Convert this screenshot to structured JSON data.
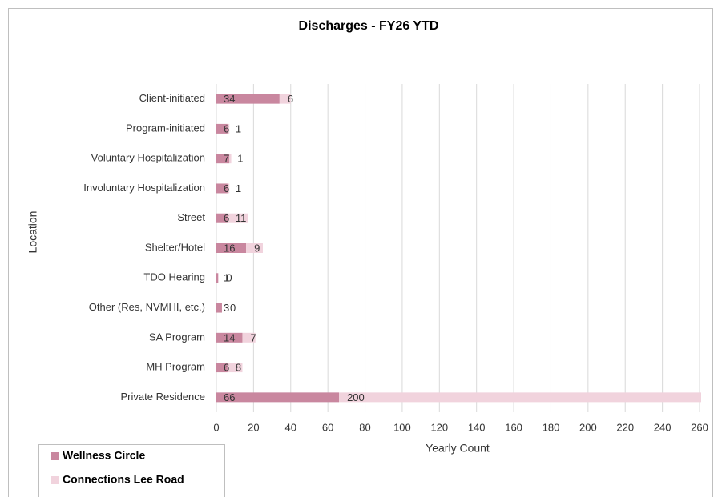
{
  "chart_data": {
    "type": "stacked-bar-horizontal",
    "title": "Discharges - FY26 YTD",
    "x_label": "Yearly Count",
    "y_label": "Location",
    "categories": [
      "Client-initiated",
      "Program-initiated",
      "Voluntary Hospitalization",
      "Involuntary Hospitalization",
      "Street",
      "Shelter/Hotel",
      "TDO Hearing",
      "Other (Res, NVMHI, etc.)",
      "SA Program",
      "MH Program",
      "Private Residence"
    ],
    "series": [
      {
        "name": "Wellness Circle",
        "color": "#c9879f",
        "values": [
          34,
          6,
          7,
          6,
          6,
          16,
          1,
          3,
          14,
          6,
          66
        ]
      },
      {
        "name": "Connections Lee Road",
        "color": "#f1d3dd",
        "values": [
          6,
          1,
          1,
          1,
          11,
          9,
          0,
          0,
          7,
          8,
          200
        ]
      }
    ],
    "xlim": [
      0,
      260
    ],
    "xticks": [
      0,
      20,
      40,
      60,
      80,
      100,
      120,
      140,
      160,
      180,
      200,
      220,
      240,
      260
    ],
    "grid": true,
    "legend": "bottom-left"
  }
}
